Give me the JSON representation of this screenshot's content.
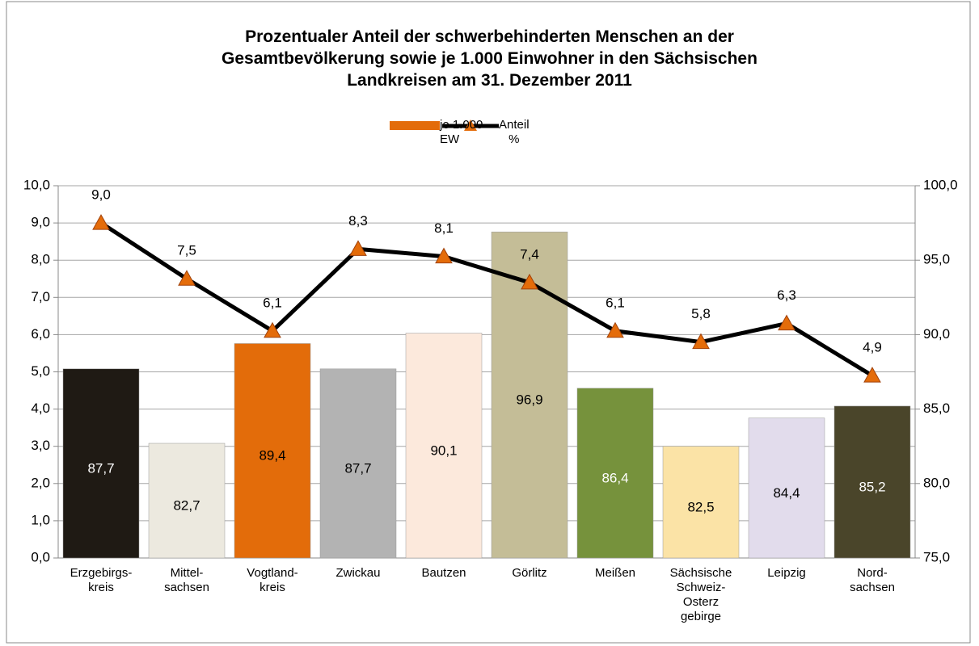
{
  "chart_data": {
    "type": "combo",
    "title": "Prozentualer Anteil der schwerbehinderten Menschen an der\nGesamtbevölkerung sowie je 1.000 Einwohner  in den Sächsischen\nLandkreisen am 31. Dezember 2011",
    "categories": [
      "Erzgebirgs-\nkreis",
      "Mittel-\nsachsen",
      "Vogtland-\nkreis",
      "Zwickau",
      "Bautzen",
      "Görlitz",
      "Meißen",
      "Sächsische\nSchweiz-\nOsterz\ngebirge",
      "Leipzig",
      "Nord-\nsachsen"
    ],
    "series": [
      {
        "name": "je 1.000\nEW",
        "type": "bar",
        "axis": "y2",
        "color": "#e36c0a",
        "colors": [
          "#1f1a14",
          "#ece9df",
          "#e36c0a",
          "#b3b3b3",
          "#fce9dc",
          "#c4bd97",
          "#76923c",
          "#fbe3a6",
          "#e2dcec",
          "#4a452a"
        ],
        "values": [
          87.7,
          82.7,
          89.4,
          87.7,
          90.1,
          96.9,
          86.4,
          82.5,
          84.4,
          85.2
        ],
        "value_labels": [
          "87,7",
          "82,7",
          "89,4",
          "87,7",
          "90,1",
          "96,9",
          "86,4",
          "82,5",
          "84,4",
          "85,2"
        ]
      },
      {
        "name": "Anteil\n%",
        "type": "line",
        "color": "#000000",
        "marker_color": "#e46c0a",
        "values": [
          9.0,
          7.5,
          6.1,
          8.3,
          8.1,
          7.4,
          6.1,
          5.8,
          6.3,
          4.9
        ],
        "value_labels": [
          "9,0",
          "7,5",
          "6,1",
          "8,3",
          "8,1",
          "7,4",
          "6,1",
          "5,8",
          "6,3",
          "4,9"
        ]
      }
    ],
    "ylim": [
      0,
      10
    ],
    "yticks": [
      {
        "value": 0,
        "label": "0,0"
      },
      {
        "value": 1,
        "label": "1,0"
      },
      {
        "value": 2,
        "label": "2,0"
      },
      {
        "value": 3,
        "label": "3,0"
      },
      {
        "value": 4,
        "label": "4,0"
      },
      {
        "value": 5,
        "label": "5,0"
      },
      {
        "value": 6,
        "label": "6,0"
      },
      {
        "value": 7,
        "label": "7,0"
      },
      {
        "value": 8,
        "label": "8,0"
      },
      {
        "value": 9,
        "label": "9,0"
      },
      {
        "value": 10,
        "label": "10,0"
      }
    ],
    "y2lim": [
      75,
      100
    ],
    "y2ticks": [
      {
        "value": 75,
        "label": "75,0"
      },
      {
        "value": 80,
        "label": "80,0"
      },
      {
        "value": 85,
        "label": "85,0"
      },
      {
        "value": 90,
        "label": "90,0"
      },
      {
        "value": 95,
        "label": "95,0"
      },
      {
        "value": 100,
        "label": "100,0"
      }
    ],
    "grid": true
  }
}
